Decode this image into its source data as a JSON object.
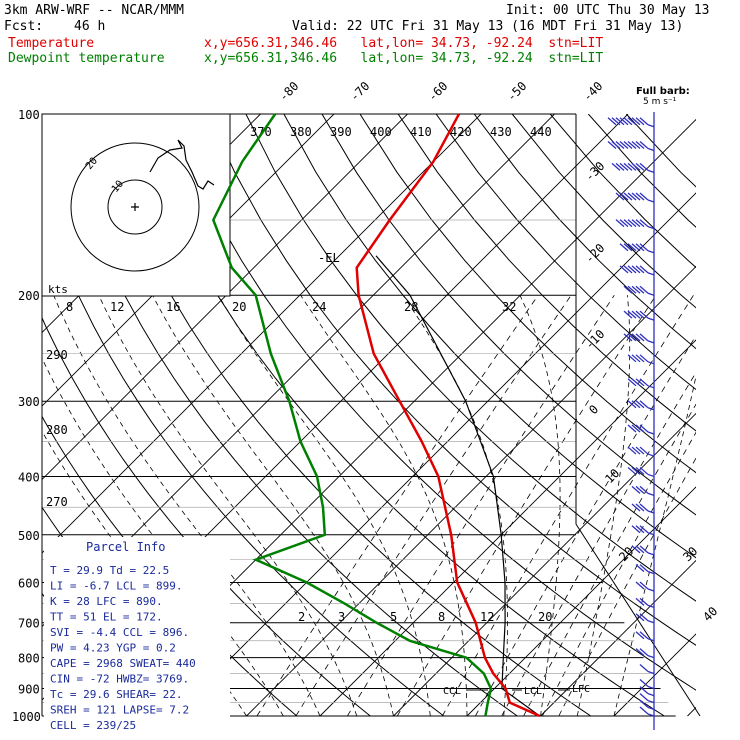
{
  "header": {
    "model": "3km ARW-WRF -- NCAR/MMM",
    "init": "Init: 00 UTC Thu 30 May 13",
    "fcst_label": "Fcst:",
    "fcst_value": "46 h",
    "valid": "Valid: 22 UTC Fri 31 May 13 (16 MDT Fri 31 May 13)",
    "temp_label": "Temperature",
    "dew_label": "Dewpoint temperature",
    "location": "x,y=656.31,346.46   lat,lon= 34.73, -92.24  stn=LIT"
  },
  "barb_legend": {
    "line1": "Full barb:",
    "line2": "5 m s⁻¹"
  },
  "parcel_info": {
    "title": "Parcel Info",
    "rows": [
      "T   =   29.9  Td =  22.5",
      "LI  =   -6.7  LCL =  899.",
      "K   =     28  LFC =  890.",
      "TT  =     51  EL  =  172.",
      "SVI =   -4.4  CCL =  896.",
      "PW  =   4.23  YGP =   0.2",
      "CAPE =  2968  SWEAT=  440",
      "CIN  =   -72  HWBZ= 3769.",
      "Tc  =   29.6  SHEAR=  22.",
      "SREH =   121  LAPSE=  7.2",
      "CELL =  239/25"
    ]
  },
  "annotations": {
    "el": "-EL",
    "ccl": "CCL",
    "lcl": "LCL",
    "lfc": "LFC",
    "hodo_kts": "kts",
    "hodo_ring_inner": "10",
    "hodo_ring_outer": "20"
  },
  "chart_data": {
    "type": "skew-t",
    "pressure_ticks": [
      "100",
      "200",
      "300",
      "400",
      "500",
      "600",
      "700",
      "800",
      "900",
      "1000"
    ],
    "isotherm_top_labels": [
      "-80",
      "-70",
      "-60",
      "-50",
      "-40"
    ],
    "isotherm_right_labels": [
      "-30",
      "-20",
      "-10",
      "0",
      "10",
      "20",
      "30",
      "40"
    ],
    "theta_labels": [
      "370",
      "380",
      "390",
      "400",
      "410",
      "420",
      "430",
      "440"
    ],
    "mixing_ratio_top_labels": [
      "8",
      "12",
      "16",
      "20",
      "24",
      "28",
      "32"
    ],
    "mixing_ratio_bottom_labels": [
      "2",
      "3",
      "5",
      "8",
      "12",
      "20"
    ],
    "left_theta_labels": [
      "290",
      "280",
      "270"
    ],
    "temperature": {
      "name": "Temperature",
      "color": "#e00000",
      "pressure": [
        1000,
        950,
        900,
        850,
        800,
        700,
        600,
        500,
        400,
        350,
        300,
        250,
        200,
        180,
        150,
        120,
        100
      ],
      "value": [
        29.9,
        24.0,
        21.5,
        17.8,
        14.5,
        8.5,
        0.5,
        -6.8,
        -16.5,
        -23.5,
        -32.0,
        -42.0,
        -52.0,
        -56.0,
        -58.0,
        -60.0,
        -63.0
      ]
    },
    "dewpoint": {
      "name": "Dewpoint temperature",
      "color": "#008000",
      "pressure": [
        1000,
        950,
        900,
        850,
        800,
        750,
        700,
        650,
        600,
        550,
        500,
        450,
        400,
        350,
        300,
        250,
        200,
        180,
        150,
        120,
        100
      ],
      "value": [
        22.5,
        21.0,
        19.5,
        16.5,
        12.0,
        2.0,
        -5.0,
        -12.0,
        -20.0,
        -30.0,
        -24.0,
        -28.0,
        -33.0,
        -40.0,
        -47.0,
        -56.0,
        -66.0,
        -73.0,
        -82.0,
        -86.0,
        -88.0
      ]
    },
    "parcel": {
      "color": "#000000",
      "pressure": [
        1000,
        900,
        800,
        700,
        600,
        500,
        400,
        300,
        200,
        172
      ],
      "value": [
        29.9,
        21.0,
        17.0,
        12.5,
        7.0,
        0.0,
        -9.0,
        -23.0,
        -45.0,
        -55.0
      ]
    },
    "wind_barbs": {
      "pressure": [
        105,
        115,
        125,
        140,
        155,
        170,
        185,
        200,
        220,
        240,
        260,
        285,
        310,
        340,
        370,
        400,
        430,
        460,
        500,
        540,
        580,
        620,
        660,
        700,
        750,
        800,
        850,
        900,
        925,
        950,
        975,
        1000
      ],
      "speed_ms": [
        45,
        45,
        40,
        35,
        35,
        30,
        30,
        25,
        25,
        25,
        20,
        20,
        20,
        20,
        20,
        20,
        15,
        15,
        15,
        15,
        10,
        10,
        10,
        10,
        10,
        10,
        5,
        5,
        5,
        5,
        5,
        5
      ]
    }
  }
}
